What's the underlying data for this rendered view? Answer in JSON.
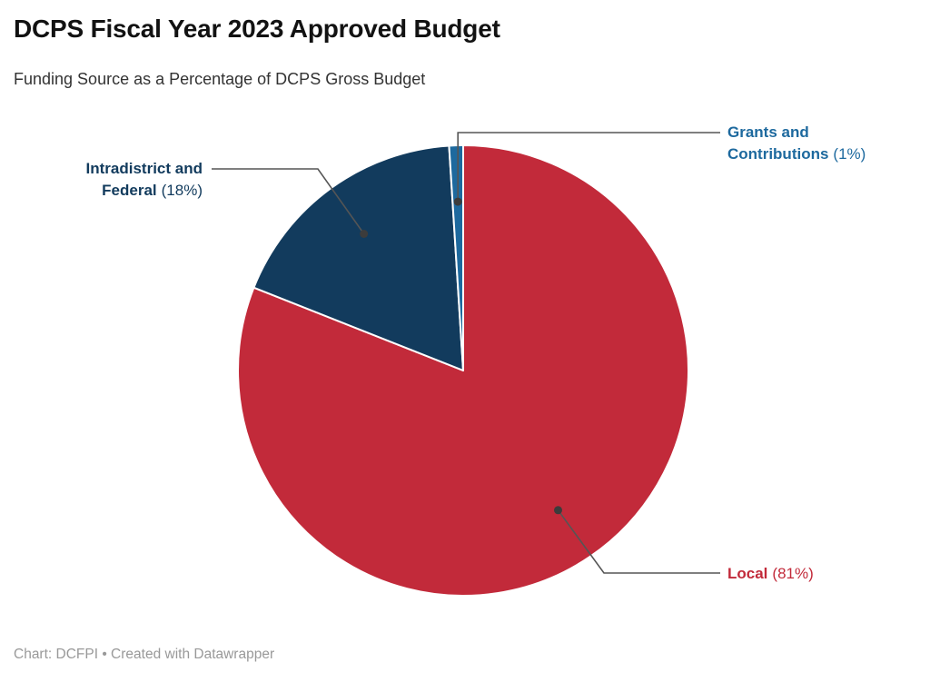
{
  "header": {
    "title": "DCPS Fiscal Year 2023 Approved Budget",
    "subtitle": "Funding Source as a Percentage of DCPS Gross Budget"
  },
  "footer": {
    "attribution": "Chart: DCFPI • Created with Datawrapper"
  },
  "colors": {
    "local": "#c22a3a",
    "intradistrict": "#123b5d",
    "grants": "#1d699e",
    "connector_line": "#555555",
    "connector_dot": "#3c3c3c",
    "title": "#121212",
    "subtitle": "#333333",
    "footer": "#999999",
    "slice_gap": "#ffffff"
  },
  "labels": {
    "grants": {
      "line1": "Grants and",
      "line2_name": "Contributions",
      "pct": "(1%)"
    },
    "intradistrict": {
      "line1": "Intradistrict and",
      "line2_name": "Federal",
      "pct": "(18%)"
    },
    "local": {
      "name": "Local",
      "pct": "(81%)"
    }
  },
  "chart_data": {
    "type": "pie",
    "title": "DCPS Fiscal Year 2023 Approved Budget",
    "subtitle": "Funding Source as a Percentage of DCPS Gross Budget",
    "unit": "percent",
    "start_angle_deg": 0,
    "direction": "clockwise",
    "slices": [
      {
        "label": "Local",
        "value": 81,
        "color": "#c22a3a"
      },
      {
        "label": "Intradistrict and Federal",
        "value": 18,
        "color": "#123b5d"
      },
      {
        "label": "Grants and Contributions",
        "value": 1,
        "color": "#1d699e"
      }
    ],
    "attribution": "Chart: DCFPI • Created with Datawrapper"
  }
}
